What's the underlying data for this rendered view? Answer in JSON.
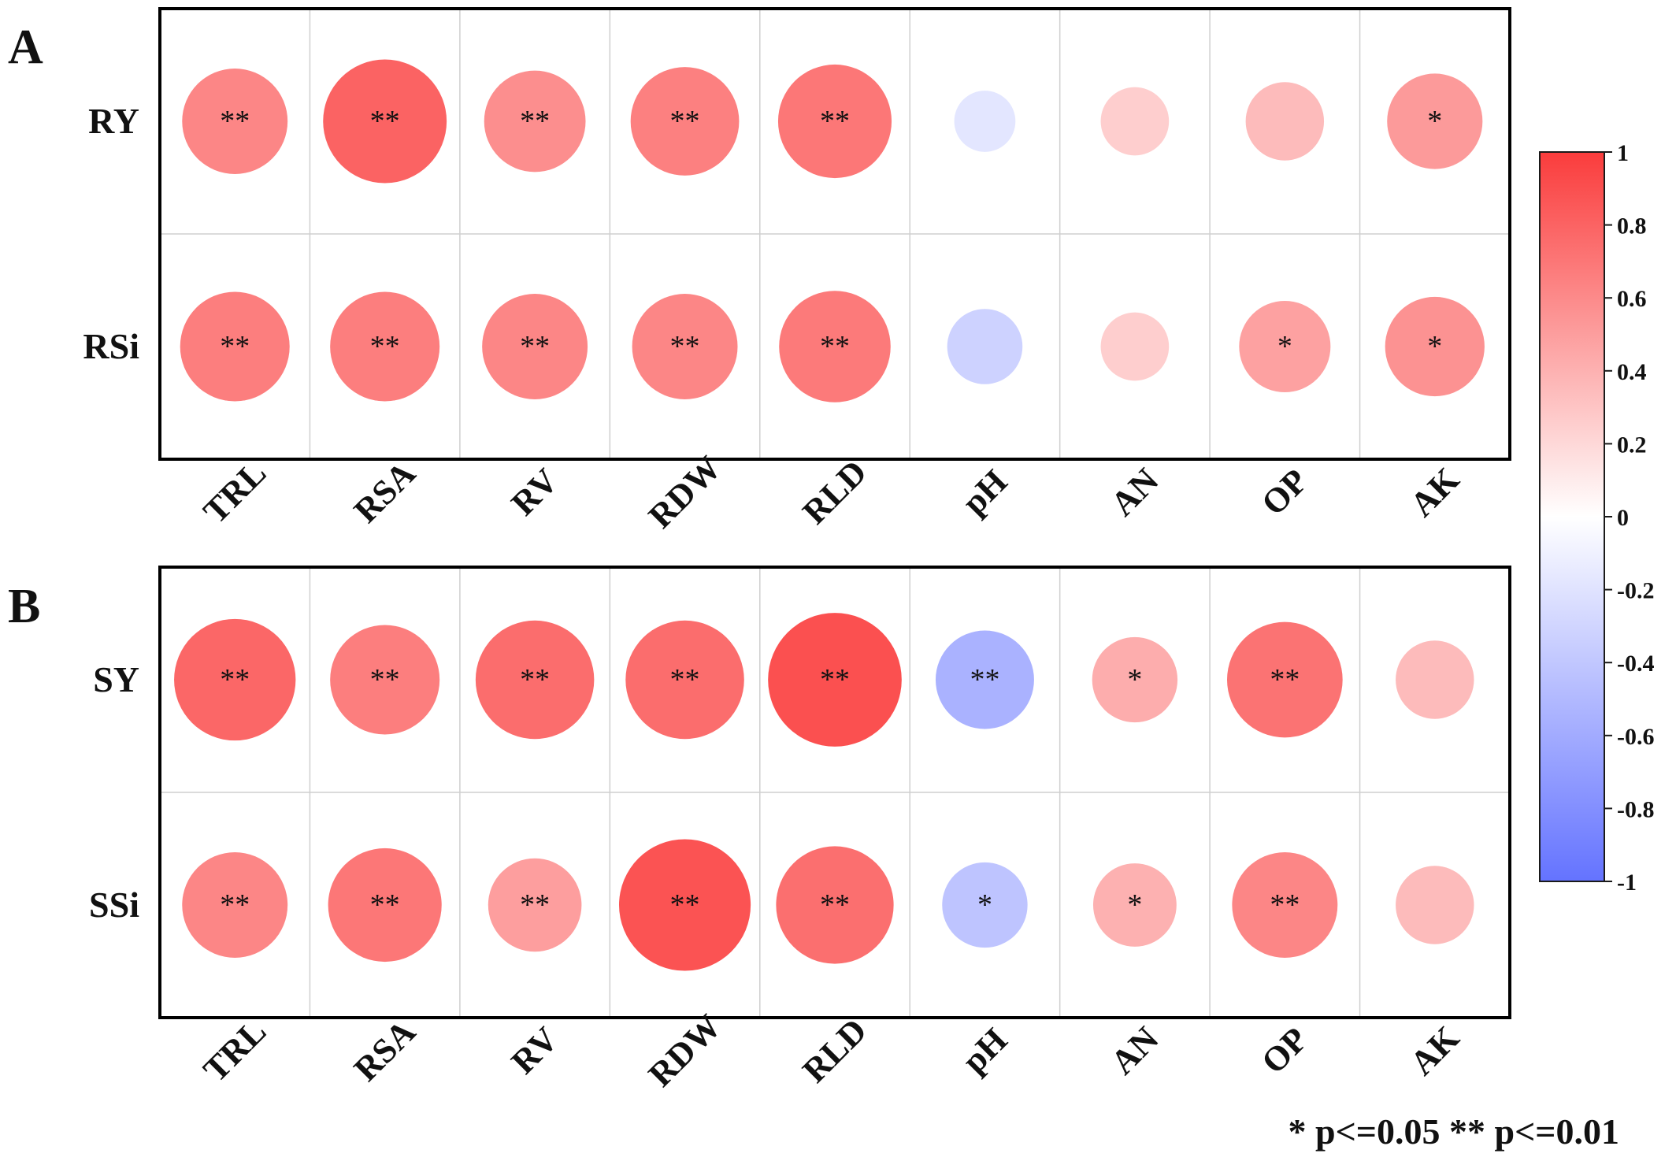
{
  "chart_data": [
    {
      "type": "heatmap",
      "panel": "A",
      "rows": [
        "RY",
        "RSi"
      ],
      "columns": [
        "TRL",
        "RSA",
        "RV",
        "RDW",
        "RLD",
        "pH",
        "AN",
        "OP",
        "AK"
      ],
      "values": [
        [
          0.62,
          0.8,
          0.58,
          0.65,
          0.7,
          -0.18,
          0.25,
          0.35,
          0.52
        ],
        [
          0.66,
          0.66,
          0.62,
          0.62,
          0.68,
          -0.32,
          0.25,
          0.48,
          0.56
        ]
      ],
      "significance": [
        [
          "**",
          "**",
          "**",
          "**",
          "**",
          "",
          "",
          "",
          "*"
        ],
        [
          "**",
          "**",
          "**",
          "**",
          "**",
          "",
          "",
          "*",
          "*"
        ]
      ]
    },
    {
      "type": "heatmap",
      "panel": "B",
      "rows": [
        "SY",
        "SSi"
      ],
      "columns": [
        "TRL",
        "RSA",
        "RV",
        "RDW",
        "RLD",
        "pH",
        "AN",
        "OP",
        "AK"
      ],
      "values": [
        [
          0.78,
          0.66,
          0.75,
          0.75,
          0.9,
          -0.55,
          0.42,
          0.72,
          0.35
        ],
        [
          0.62,
          0.7,
          0.5,
          0.88,
          0.74,
          -0.42,
          0.4,
          0.62,
          0.35
        ]
      ],
      "significance": [
        [
          "**",
          "**",
          "**",
          "**",
          "**",
          "**",
          "*",
          "**",
          ""
        ],
        [
          "**",
          "**",
          "**",
          "**",
          "**",
          "*",
          "*",
          "**",
          ""
        ]
      ]
    }
  ],
  "colorbar": {
    "ticks": [
      "1",
      "0.8",
      "0.6",
      "0.4",
      "0.2",
      "0",
      "-0.2",
      "-0.4",
      "-0.6",
      "-0.8",
      "-1"
    ],
    "range": [
      -1,
      1
    ],
    "colors": {
      "positive": "#fa3c3c",
      "zero": "#ffffff",
      "negative": "#6473ff"
    }
  },
  "footnote": "* p<=0.05  ** p<=0.01"
}
